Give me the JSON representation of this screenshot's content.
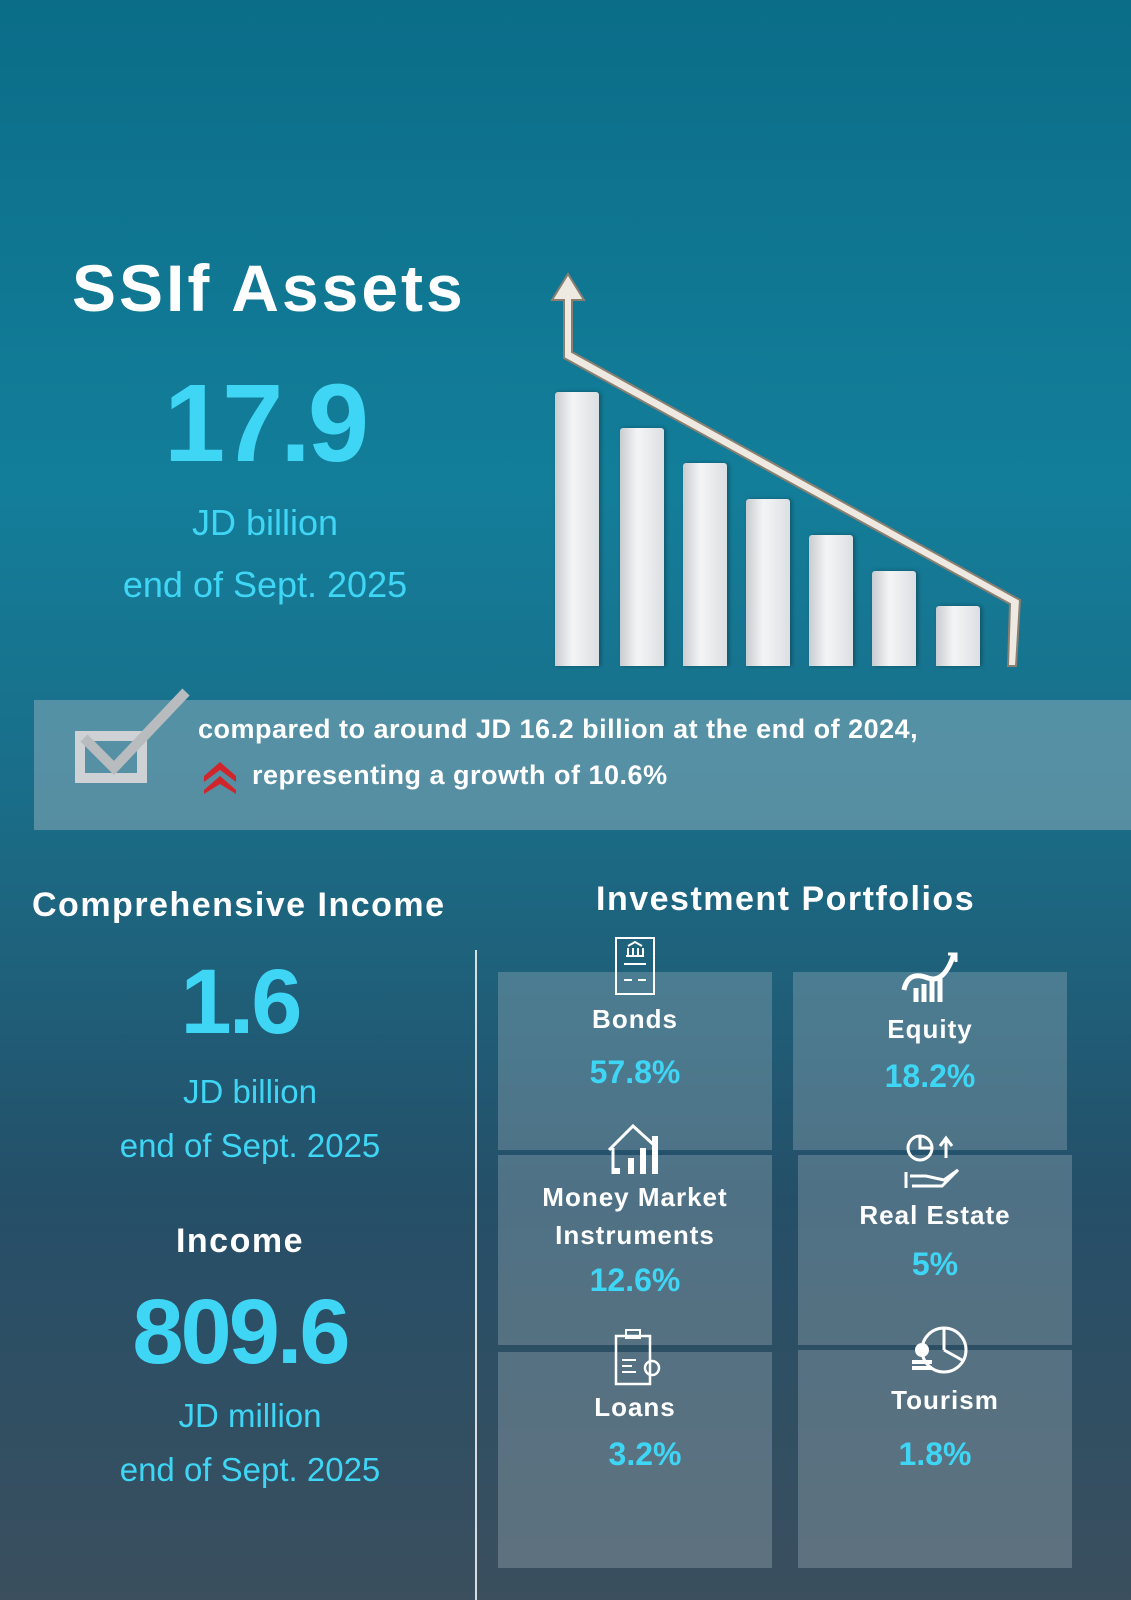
{
  "assets": {
    "title": "SSIf Assets",
    "value": "17.9",
    "unit": "JD billion",
    "period": "end of Sept. 2025"
  },
  "comparison": {
    "line1": "compared to around JD 16.2 billion at the end of 2024,",
    "line2": "representing  a growth of 10.6%",
    "icons": [
      "checkbox-icon",
      "double-chevron-up-icon"
    ],
    "arrow_color": "#d0262b"
  },
  "comprehensive_income": {
    "title": "Comprehensive Income",
    "value": "1.6",
    "unit": "JD billion",
    "period": "end of Sept. 2025"
  },
  "income": {
    "title": "Income",
    "value": "809.6",
    "unit": "JD million",
    "period": "end of Sept. 2025"
  },
  "portfolios": {
    "title": "Investment Portfolios",
    "items": [
      {
        "label": "Bonds",
        "value": "57.8%",
        "icon": "bond-certificate-icon"
      },
      {
        "label": "Equity",
        "value": "18.2%",
        "icon": "growth-chart-icon"
      },
      {
        "label": "Money Market Instruments",
        "value": "12.6%",
        "icon": "house-bars-icon"
      },
      {
        "label": "Real Estate",
        "value": "5%",
        "icon": "hand-pie-chart-icon"
      },
      {
        "label": "Loans",
        "value": "3.2%",
        "icon": "loan-document-icon"
      },
      {
        "label": "Tourism",
        "value": "1.8%",
        "icon": "coins-pie-chart-icon"
      }
    ]
  },
  "colors": {
    "accent": "#3fd6f5",
    "background": "#0b6d88"
  }
}
